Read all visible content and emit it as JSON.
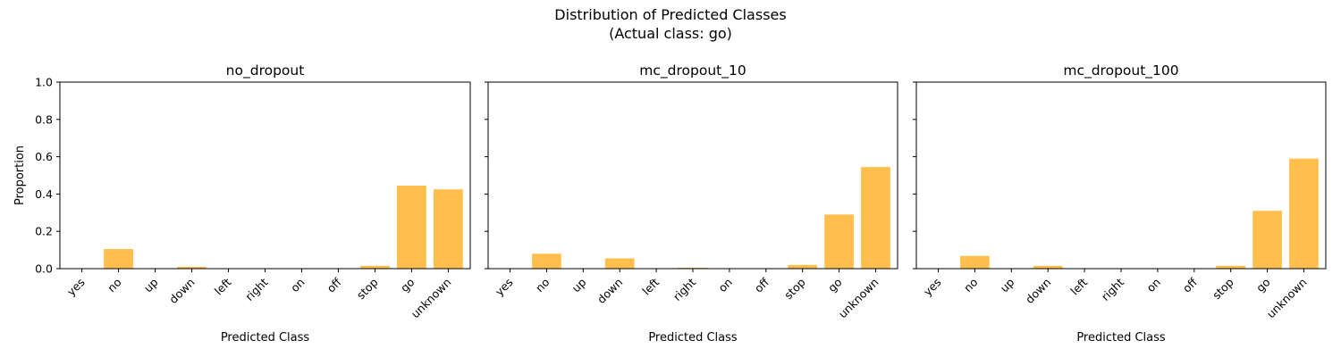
{
  "figure": {
    "title_line1": "Distribution of Predicted Classes",
    "title_line2": "(Actual class: go)"
  },
  "chart_data": [
    {
      "type": "bar",
      "title": "no_dropout",
      "xlabel": "Predicted Class",
      "ylabel": "Proportion",
      "categories": [
        "yes",
        "no",
        "up",
        "down",
        "left",
        "right",
        "on",
        "off",
        "stop",
        "go",
        "unknown"
      ],
      "values": [
        0.0,
        0.105,
        0.0,
        0.01,
        0.0,
        0.0,
        0.0,
        0.0,
        0.015,
        0.445,
        0.425
      ],
      "ylim": [
        0,
        1.0
      ],
      "yticks": [
        "0.0",
        "0.2",
        "0.4",
        "0.6",
        "0.8",
        "1.0"
      ],
      "bar_color": "#FFBF4D",
      "grid": false
    },
    {
      "type": "bar",
      "title": "mc_dropout_10",
      "xlabel": "Predicted Class",
      "ylabel": "",
      "categories": [
        "yes",
        "no",
        "up",
        "down",
        "left",
        "right",
        "on",
        "off",
        "stop",
        "go",
        "unknown"
      ],
      "values": [
        0.0,
        0.08,
        0.0,
        0.055,
        0.0,
        0.005,
        0.0,
        0.0,
        0.02,
        0.29,
        0.545
      ],
      "ylim": [
        0,
        1.0
      ],
      "yticks": [],
      "bar_color": "#FFBF4D",
      "grid": false
    },
    {
      "type": "bar",
      "title": "mc_dropout_100",
      "xlabel": "Predicted Class",
      "ylabel": "",
      "categories": [
        "yes",
        "no",
        "up",
        "down",
        "left",
        "right",
        "on",
        "off",
        "stop",
        "go",
        "unknown"
      ],
      "values": [
        0.0,
        0.068,
        0.0,
        0.015,
        0.0,
        0.0,
        0.0,
        0.0,
        0.015,
        0.31,
        0.59
      ],
      "ylim": [
        0,
        1.0
      ],
      "yticks": [],
      "bar_color": "#FFBF4D",
      "grid": false
    }
  ]
}
